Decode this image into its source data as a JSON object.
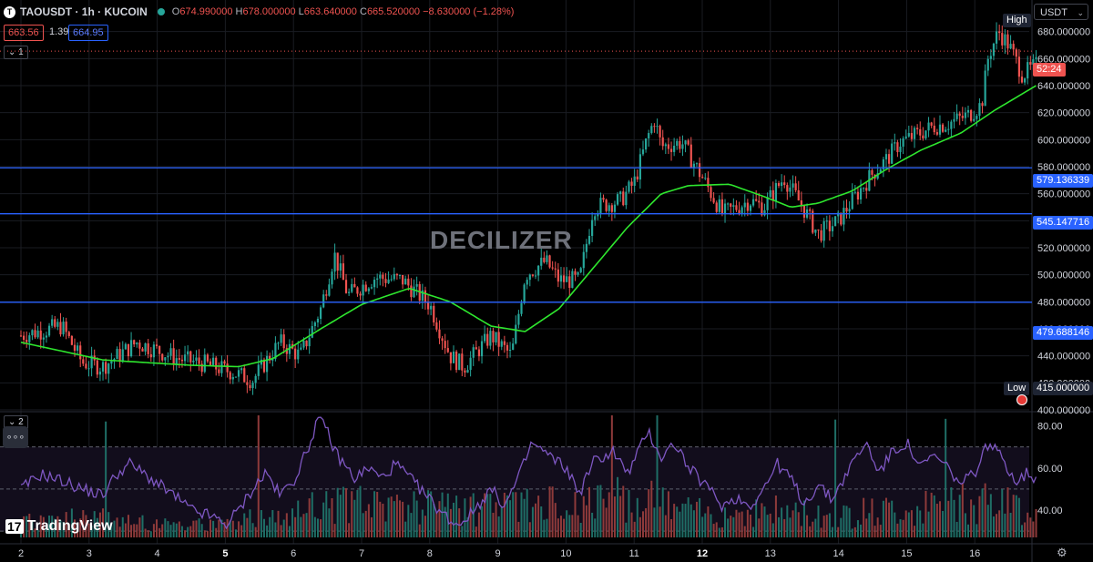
{
  "header": {
    "symbol": "TAOUSDT · 1h · KUCOIN",
    "ohlc": [
      {
        "k": "O",
        "v": "674.990000"
      },
      {
        "k": "H",
        "v": "678.000000"
      },
      {
        "k": "L",
        "v": "663.640000"
      },
      {
        "k": "C",
        "v": "665.520000"
      }
    ],
    "change": "−8.630000 (−1.28%)",
    "bid": "663.56",
    "spread": "1.39",
    "ask": "664.95",
    "pane1_label": "1",
    "pane2_label": "2",
    "more_label": "∘∘∘"
  },
  "watermark": "DECILIZER",
  "brand": "TradingView",
  "currency": "USDT",
  "high_label": "High",
  "low_label": "Low",
  "current_price_label": "52:24",
  "low_value_label": "415.000000",
  "colors": {
    "up": "#26a69a",
    "down": "#ef5350",
    "ma": "#2ee62e",
    "rsi": "#7e57c2",
    "hline": "#2962ff",
    "current": "#ef5350"
  },
  "chart_data": [
    {
      "type": "candlestick",
      "title": "TAOUSDT · 1h · KUCOIN",
      "ylim": [
        400,
        700
      ],
      "y_ticks": [
        400,
        420,
        440,
        460,
        480,
        500,
        520,
        540,
        560,
        580,
        600,
        620,
        640,
        660,
        680
      ],
      "y_tick_labels": [
        "400.000000",
        "420.000000",
        "440.000000",
        "460.000000",
        "480.000000",
        "500.000000",
        "520.000000",
        "540.000000",
        "560.000000",
        "580.000000",
        "600.000000",
        "620.000000",
        "640.000000",
        "660.000000",
        "680.000000"
      ],
      "x_labels": [
        "2",
        "3",
        "4",
        "5",
        "6",
        "7",
        "8",
        "9",
        "10",
        "11",
        "12",
        "13",
        "14",
        "15",
        "16"
      ],
      "x_bold": [
        "5",
        "12"
      ],
      "series": [
        {
          "name": "Close",
          "anchors": [
            [
              0,
              455
            ],
            [
              0.6,
              462
            ],
            [
              0.9,
              435
            ],
            [
              1.2,
              432
            ],
            [
              1.7,
              450
            ],
            [
              2.3,
              438
            ],
            [
              2.7,
              434
            ],
            [
              3.1,
              428
            ],
            [
              3.4,
              422
            ],
            [
              3.8,
              450
            ],
            [
              4.1,
              440
            ],
            [
              4.4,
              475
            ],
            [
              4.6,
              515
            ],
            [
              4.8,
              485
            ],
            [
              5.2,
              498
            ],
            [
              5.6,
              496
            ],
            [
              6.0,
              478
            ],
            [
              6.3,
              440
            ],
            [
              6.5,
              432
            ],
            [
              6.9,
              455
            ],
            [
              7.2,
              440
            ],
            [
              7.4,
              500
            ],
            [
              7.7,
              510
            ],
            [
              7.9,
              496
            ],
            [
              8.2,
              496
            ],
            [
              8.4,
              550
            ],
            [
              8.8,
              555
            ],
            [
              9.0,
              568
            ],
            [
              9.2,
              602
            ],
            [
              9.3,
              615
            ],
            [
              9.4,
              595
            ],
            [
              9.7,
              598
            ],
            [
              10.0,
              572
            ],
            [
              10.3,
              545
            ],
            [
              10.7,
              555
            ],
            [
              10.9,
              550
            ],
            [
              11.2,
              572
            ],
            [
              11.5,
              548
            ],
            [
              11.7,
              530
            ],
            [
              12.0,
              540
            ],
            [
              12.2,
              555
            ],
            [
              12.5,
              575
            ],
            [
              12.7,
              585
            ],
            [
              12.9,
              598
            ],
            [
              13.2,
              605
            ],
            [
              13.4,
              610
            ],
            [
              13.6,
              612
            ],
            [
              13.9,
              618
            ],
            [
              14.1,
              626
            ],
            [
              14.2,
              662
            ],
            [
              14.35,
              680
            ],
            [
              14.5,
              670
            ],
            [
              14.7,
              648
            ],
            [
              14.9,
              655
            ]
          ]
        },
        {
          "name": "MA",
          "anchors": [
            [
              0,
              450
            ],
            [
              1.2,
              437
            ],
            [
              2.5,
              433
            ],
            [
              3.2,
              432
            ],
            [
              3.7,
              438
            ],
            [
              4.4,
              460
            ],
            [
              5.0,
              478
            ],
            [
              5.7,
              490
            ],
            [
              6.3,
              480
            ],
            [
              6.9,
              462
            ],
            [
              7.4,
              458
            ],
            [
              7.9,
              475
            ],
            [
              8.4,
              505
            ],
            [
              8.9,
              535
            ],
            [
              9.4,
              560
            ],
            [
              9.8,
              566
            ],
            [
              10.4,
              567
            ],
            [
              10.9,
              558
            ],
            [
              11.3,
              550
            ],
            [
              11.7,
              553
            ],
            [
              12.2,
              562
            ],
            [
              12.7,
              578
            ],
            [
              13.2,
              592
            ],
            [
              13.8,
              605
            ],
            [
              14.3,
              622
            ],
            [
              14.9,
              640
            ]
          ]
        }
      ],
      "horizontal_levels": [
        {
          "value": 579.136339,
          "label": "579.136339"
        },
        {
          "value": 545.147716,
          "label": "545.147716"
        },
        {
          "value": 479.688146,
          "label": "479.688146"
        }
      ],
      "current_price": 665.52,
      "high": 700,
      "low": 415
    },
    {
      "type": "line",
      "title": "",
      "ylim": [
        27,
        85
      ],
      "y_ticks": [
        40,
        60,
        80
      ],
      "y_tick_labels": [
        "40.00",
        "60.00",
        "80.00"
      ],
      "guides": [
        30,
        50,
        70
      ],
      "series": [
        {
          "name": "RSI",
          "anchors": [
            [
              0,
              50
            ],
            [
              0.3,
              57
            ],
            [
              0.6,
              54
            ],
            [
              0.9,
              50
            ],
            [
              1.2,
              47
            ],
            [
              1.4,
              57
            ],
            [
              1.6,
              62
            ],
            [
              1.9,
              55
            ],
            [
              2.2,
              48
            ],
            [
              2.5,
              40
            ],
            [
              2.8,
              37
            ],
            [
              3.0,
              33
            ],
            [
              3.2,
              40
            ],
            [
              3.4,
              50
            ],
            [
              3.6,
              58
            ],
            [
              3.8,
              47
            ],
            [
              4.0,
              54
            ],
            [
              4.2,
              68
            ],
            [
              4.35,
              83
            ],
            [
              4.5,
              78
            ],
            [
              4.6,
              68
            ],
            [
              4.9,
              55
            ],
            [
              5.1,
              60
            ],
            [
              5.3,
              55
            ],
            [
              5.5,
              62
            ],
            [
              5.8,
              52
            ],
            [
              6.0,
              45
            ],
            [
              6.2,
              38
            ],
            [
              6.4,
              33
            ],
            [
              6.6,
              38
            ],
            [
              6.9,
              50
            ],
            [
              7.1,
              42
            ],
            [
              7.3,
              55
            ],
            [
              7.5,
              72
            ],
            [
              7.7,
              67
            ],
            [
              8.0,
              60
            ],
            [
              8.2,
              48
            ],
            [
              8.4,
              63
            ],
            [
              8.7,
              68
            ],
            [
              8.9,
              57
            ],
            [
              9.1,
              70
            ],
            [
              9.2,
              78
            ],
            [
              9.4,
              65
            ],
            [
              9.6,
              72
            ],
            [
              9.8,
              60
            ],
            [
              10.1,
              50
            ],
            [
              10.3,
              42
            ],
            [
              10.5,
              46
            ],
            [
              10.7,
              42
            ],
            [
              10.9,
              50
            ],
            [
              11.1,
              62
            ],
            [
              11.3,
              55
            ],
            [
              11.5,
              43
            ],
            [
              11.7,
              52
            ],
            [
              11.9,
              45
            ],
            [
              12.2,
              62
            ],
            [
              12.4,
              72
            ],
            [
              12.6,
              58
            ],
            [
              12.8,
              68
            ],
            [
              13.0,
              72
            ],
            [
              13.2,
              60
            ],
            [
              13.4,
              66
            ],
            [
              13.6,
              60
            ],
            [
              13.8,
              52
            ],
            [
              14.0,
              58
            ],
            [
              14.2,
              72
            ],
            [
              14.4,
              65
            ],
            [
              14.6,
              54
            ],
            [
              14.8,
              58
            ],
            [
              14.9,
              54
            ]
          ]
        },
        {
          "name": "Volume",
          "anchors": [
            [
              0,
              0.15
            ],
            [
              1,
              0.2
            ],
            [
              2,
              0.15
            ],
            [
              3,
              0.12
            ],
            [
              4,
              0.3
            ],
            [
              5,
              0.35
            ],
            [
              6,
              0.3
            ],
            [
              7,
              0.28
            ],
            [
              8,
              0.35
            ],
            [
              9,
              0.4
            ],
            [
              10,
              0.25
            ],
            [
              11,
              0.28
            ],
            [
              12,
              0.22
            ],
            [
              13,
              0.3
            ],
            [
              14,
              0.35
            ],
            [
              14.9,
              0.3
            ]
          ]
        }
      ]
    }
  ]
}
